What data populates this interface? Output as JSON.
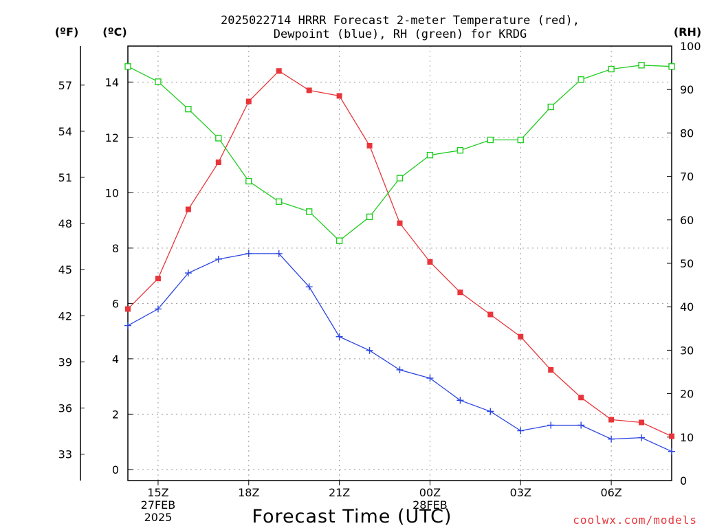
{
  "chart_data": {
    "type": "line",
    "title_line1": "2025022714 HRRR Forecast 2-meter Temperature (red),",
    "title_line2": "Dewpoint (blue), RH (green) for KRDG",
    "xlabel": "Forecast Time (UTC)",
    "credit": "coolwx.com/models",
    "units": {
      "fahrenheit": "(ºF)",
      "celsius": "(ºC)",
      "rh": "(RH)"
    },
    "x_hours": [
      14,
      15,
      16,
      17,
      18,
      19,
      20,
      21,
      22,
      23,
      24,
      25,
      26,
      27,
      28,
      29,
      30,
      31,
      32
    ],
    "xlim": [
      14,
      32
    ],
    "x_ticks": [
      {
        "hour": 15,
        "lines": [
          "15Z",
          "27FEB",
          "2025"
        ]
      },
      {
        "hour": 18,
        "lines": [
          "18Z"
        ]
      },
      {
        "hour": 21,
        "lines": [
          "21Z"
        ]
      },
      {
        "hour": 24,
        "lines": [
          "00Z",
          "28FEB"
        ]
      },
      {
        "hour": 27,
        "lines": [
          "03Z"
        ]
      },
      {
        "hour": 30,
        "lines": [
          "06Z"
        ]
      }
    ],
    "celsius_range": [
      -0.4,
      15.3
    ],
    "celsius_ticks": [
      "0",
      "2",
      "4",
      "6",
      "8",
      "10",
      "12",
      "14"
    ],
    "fahrenheit_ticks": [
      "33",
      "36",
      "39",
      "42",
      "45",
      "48",
      "51",
      "54",
      "57"
    ],
    "rh_range": [
      0,
      100
    ],
    "rh_ticks": [
      "0",
      "10",
      "20",
      "30",
      "40",
      "50",
      "60",
      "70",
      "80",
      "90",
      "100"
    ],
    "grid": true,
    "series": [
      {
        "name": "2-meter Temperature",
        "axis": "celsius",
        "color": "#e8353a",
        "marker": "filled-square",
        "values": [
          5.8,
          6.9,
          9.4,
          11.1,
          13.3,
          14.4,
          13.7,
          13.5,
          11.7,
          8.9,
          7.5,
          6.4,
          5.6,
          4.8,
          3.6,
          2.6,
          1.8,
          1.7,
          1.2
        ]
      },
      {
        "name": "Dewpoint",
        "axis": "celsius",
        "color": "#2b45e0",
        "marker": "plus",
        "values": [
          5.2,
          5.8,
          7.1,
          7.6,
          7.8,
          7.8,
          6.6,
          4.8,
          4.3,
          3.6,
          3.3,
          2.5,
          2.1,
          1.4,
          1.6,
          1.6,
          1.1,
          1.15,
          0.65
        ]
      },
      {
        "name": "RH",
        "axis": "rh",
        "color": "#22cc22",
        "marker": "open-square",
        "values": [
          95.3,
          91.8,
          85.5,
          78.8,
          68.9,
          64.2,
          61.9,
          55.2,
          60.7,
          69.6,
          74.9,
          76.0,
          78.4,
          78.4,
          86.0,
          92.3,
          94.7,
          95.6,
          95.3
        ]
      }
    ]
  }
}
